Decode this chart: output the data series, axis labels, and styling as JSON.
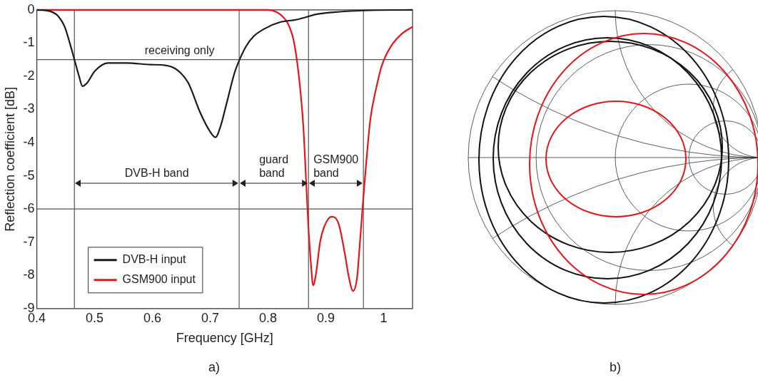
{
  "chart_data": {
    "type": "line",
    "xlabel": "Frequency [GHz]",
    "ylabel": "Reflection coefficient [dB]",
    "xlim": [
      0.4,
      1.05
    ],
    "xticks": [
      0.4,
      0.5,
      0.6,
      0.7,
      0.8,
      0.9,
      1
    ],
    "ylim": [
      -9,
      0
    ],
    "yticks": [
      0,
      -1,
      -2,
      -3,
      -4,
      -5,
      -6,
      -7,
      -8,
      -9
    ],
    "grid": false,
    "legend": "bottom left",
    "marker": "none",
    "line_style": "solid",
    "series": [
      {
        "name": "DVB-H input",
        "color": "#1a1a1a",
        "x": [
          0.4,
          0.424,
          0.437,
          0.448,
          0.457,
          0.465,
          0.473,
          0.479,
          0.487,
          0.5,
          0.523,
          0.556,
          0.596,
          0.622,
          0.642,
          0.662,
          0.682,
          0.699,
          0.709,
          0.718,
          0.728,
          0.742,
          0.751,
          0.762,
          0.775,
          0.795,
          0.821,
          0.848,
          0.864,
          0.881,
          0.914,
          0.967,
          1.05
        ],
        "values": [
          0,
          -0.05,
          -0.19,
          -0.5,
          -1.0,
          -1.5,
          -2.0,
          -2.3,
          -2.2,
          -1.85,
          -1.6,
          -1.6,
          -1.65,
          -1.67,
          -1.8,
          -2.2,
          -3.07,
          -3.65,
          -3.84,
          -3.5,
          -2.84,
          -1.9,
          -1.49,
          -1.1,
          -0.8,
          -0.56,
          -0.37,
          -0.3,
          -0.23,
          -0.14,
          -0.07,
          -0.02,
          0
        ]
      },
      {
        "name": "GSM900 input",
        "color": "#e8141b",
        "x": [
          0.4,
          0.7,
          0.8,
          0.815,
          0.825,
          0.834,
          0.845,
          0.854,
          0.861,
          0.866,
          0.87,
          0.874,
          0.878,
          0.883,
          0.89,
          0.898,
          0.91,
          0.922,
          0.932,
          0.94,
          0.947,
          0.954,
          0.959,
          0.964,
          0.97,
          0.977,
          0.987,
          0.997,
          1.013,
          1.033,
          1.05
        ],
        "values": [
          0,
          0,
          0,
          -0.07,
          -0.2,
          -0.4,
          -0.98,
          -2.1,
          -3.5,
          -5.2,
          -6.6,
          -7.6,
          -8.3,
          -7.95,
          -7.0,
          -6.5,
          -6.23,
          -6.44,
          -7.26,
          -8.07,
          -8.47,
          -8.07,
          -7.0,
          -5.86,
          -4.58,
          -3.3,
          -2.37,
          -1.67,
          -1.09,
          -0.7,
          -0.51
        ]
      }
    ],
    "ref_lines": [
      {
        "axis": "y",
        "value": -1.5,
        "label": "receiving only"
      },
      {
        "axis": "y",
        "value": -6
      },
      {
        "axis": "x",
        "value": 0.465
      },
      {
        "axis": "x",
        "value": 0.75
      },
      {
        "axis": "x",
        "value": 0.87
      },
      {
        "axis": "x",
        "value": 0.965
      }
    ],
    "annotations": [
      "DVB-H band",
      "guard band",
      "GSM900 band",
      "a)",
      "b)"
    ]
  }
}
